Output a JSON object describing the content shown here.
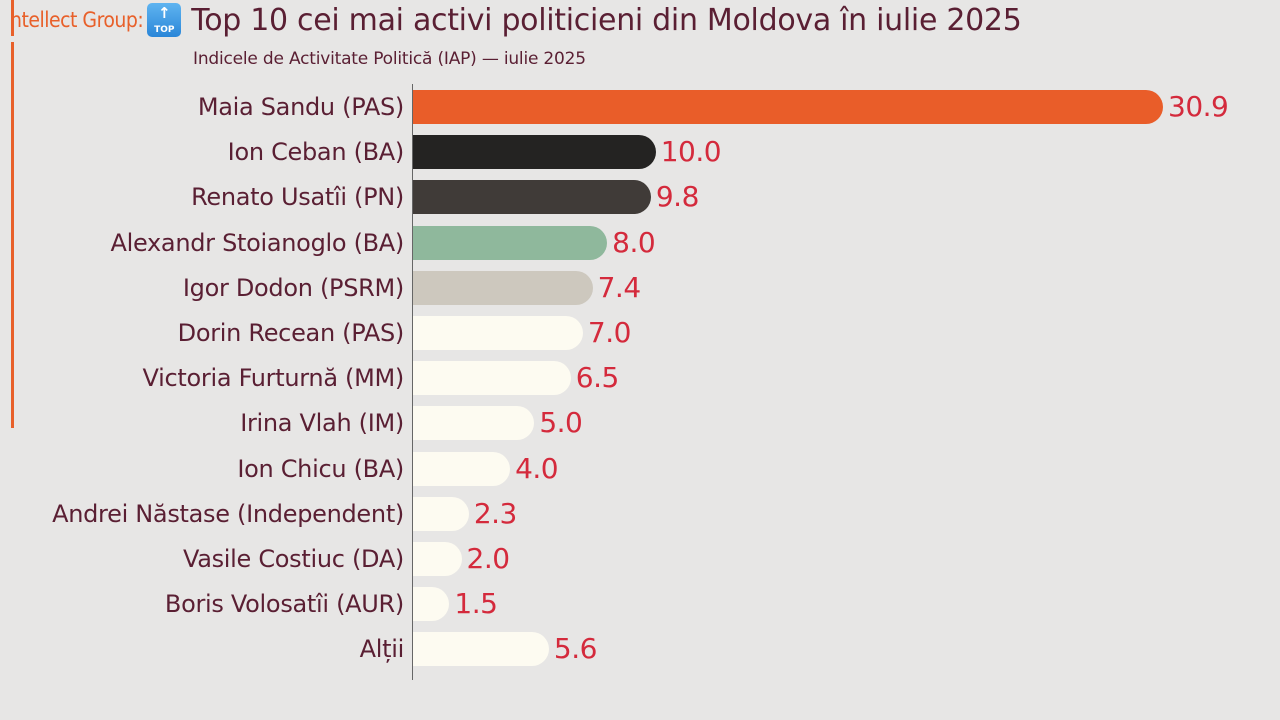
{
  "header": {
    "brand": "ntellect Group:",
    "icon": "top-arrow-icon",
    "icon_text": "TOP",
    "title": "Top 10 cei mai activi politicieni din Moldova în iulie 2025",
    "subtitle": "Indicele de Activitate Politică (IAP) — iulie 2025"
  },
  "chart_data": {
    "type": "bar",
    "orientation": "horizontal",
    "title": "Top 10 cei mai activi politicieni din Moldova în iulie 2025",
    "subtitle": "Indicele de Activitate Politică (IAP) — iulie 2025",
    "xlabel": "",
    "ylabel": "",
    "xlim": [
      0,
      30.9
    ],
    "grid": false,
    "categories": [
      "Maia Sandu (PAS)",
      "Ion Ceban (BA)",
      "Renato Usatîi (PN)",
      "Alexandr Stoianoglo (BA)",
      "Igor Dodon (PSRM)",
      "Dorin Recean (PAS)",
      "Victoria Furturnă (MM)",
      "Irina Vlah (IM)",
      "Ion Chicu (BA)",
      "Andrei Năstase (Independent)",
      "Vasile Costiuc (DA)",
      "Boris Volosatîi (AUR)",
      "Alții"
    ],
    "values": [
      30.9,
      10.0,
      9.8,
      8.0,
      7.4,
      7.0,
      6.5,
      5.0,
      4.0,
      2.3,
      2.0,
      1.5,
      5.6
    ],
    "labels": [
      "30.9",
      "10.0",
      "9.8",
      "8.0",
      "7.4",
      "7.0",
      "6.5",
      "5.0",
      "4.0",
      "2.3",
      "2.0",
      "1.5",
      "5.6"
    ],
    "colors": [
      "#e95d29",
      "#242322",
      "#403b38",
      "#8fb89c",
      "#cdc8be",
      "#fdfbf1",
      "#fdfbf1",
      "#fdfbf1",
      "#fdfbf1",
      "#fdfbf1",
      "#fdfbf1",
      "#fdfbf1",
      "#fdfbf1"
    ]
  }
}
